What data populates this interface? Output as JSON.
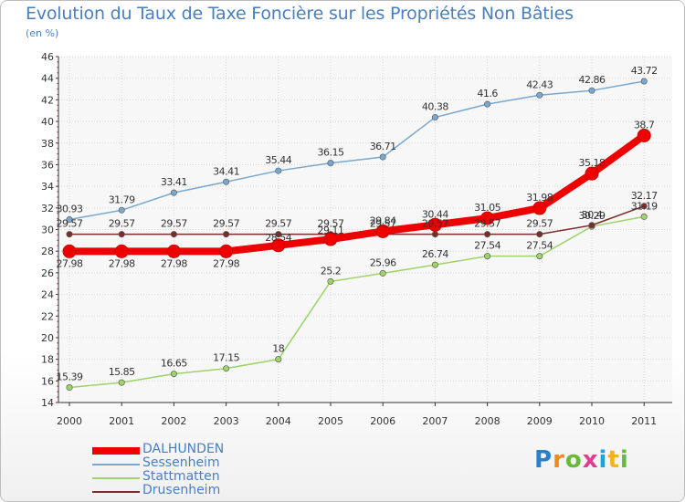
{
  "header": {
    "title": "Evolution du Taux de Taxe Foncière sur les Propriétés Non Bâties",
    "unit": "(en %)"
  },
  "logo": {
    "text": "Proxiti"
  },
  "chart_data": {
    "type": "line",
    "title": "Evolution du Taux de Taxe Foncière sur les Propriétés Non Bâties",
    "ylabel": "(en %)",
    "xlabel": "",
    "x": [
      "2000",
      "2001",
      "2002",
      "2003",
      "2004",
      "2005",
      "2006",
      "2007",
      "2008",
      "2009",
      "2010",
      "2011"
    ],
    "ylim": [
      14,
      46
    ],
    "yticks": [
      14,
      16,
      18,
      20,
      22,
      24,
      26,
      28,
      30,
      32,
      34,
      36,
      38,
      40,
      42,
      44,
      46
    ],
    "grid": true,
    "legend_position": "bottom-left",
    "series": [
      {
        "name": "DALHUNDEN",
        "color": "#ee0000",
        "values": [
          27.98,
          27.98,
          27.98,
          27.98,
          28.54,
          29.11,
          29.84,
          30.44,
          31.05,
          31.98,
          35.18,
          38.7
        ],
        "labels": [
          "27.98",
          "27.98",
          "27.98",
          "27.98",
          "28.54",
          "29.11",
          "29.84",
          "30.44",
          "31.05",
          "31.98",
          "35.18",
          "38.7"
        ]
      },
      {
        "name": "Sessenheim",
        "color": "#78a8d0",
        "values": [
          30.93,
          31.79,
          33.41,
          34.41,
          35.44,
          36.15,
          36.71,
          40.38,
          41.6,
          42.43,
          42.86,
          43.72
        ],
        "labels": [
          "30.93",
          "31.79",
          "33.41",
          "34.41",
          "35.44",
          "36.15",
          "36.71",
          "40.38",
          "41.6",
          "42.43",
          "42.86",
          "43.72"
        ]
      },
      {
        "name": "Stattmatten",
        "color": "#9ed26a",
        "values": [
          15.39,
          15.85,
          16.65,
          17.15,
          18,
          25.2,
          25.96,
          26.74,
          27.54,
          27.54,
          30.29,
          31.19
        ],
        "labels": [
          "15.39",
          "15.85",
          "16.65",
          "17.15",
          "18",
          "25.2",
          "25.96",
          "26.74",
          "27.54",
          "27.54",
          "30.29",
          "31.19"
        ]
      },
      {
        "name": "Drusenheim",
        "color": "#7b2c2c",
        "values": [
          29.57,
          29.57,
          29.57,
          29.57,
          29.57,
          29.57,
          29.57,
          29.57,
          29.57,
          29.57,
          30.4,
          32.17
        ],
        "labels": [
          "29.57",
          "29.57",
          "29.57",
          "29.57",
          "29.57",
          "29.57",
          "29.57",
          "29.57",
          "29.57",
          "29.57",
          "30.4",
          "32.17"
        ]
      }
    ]
  }
}
